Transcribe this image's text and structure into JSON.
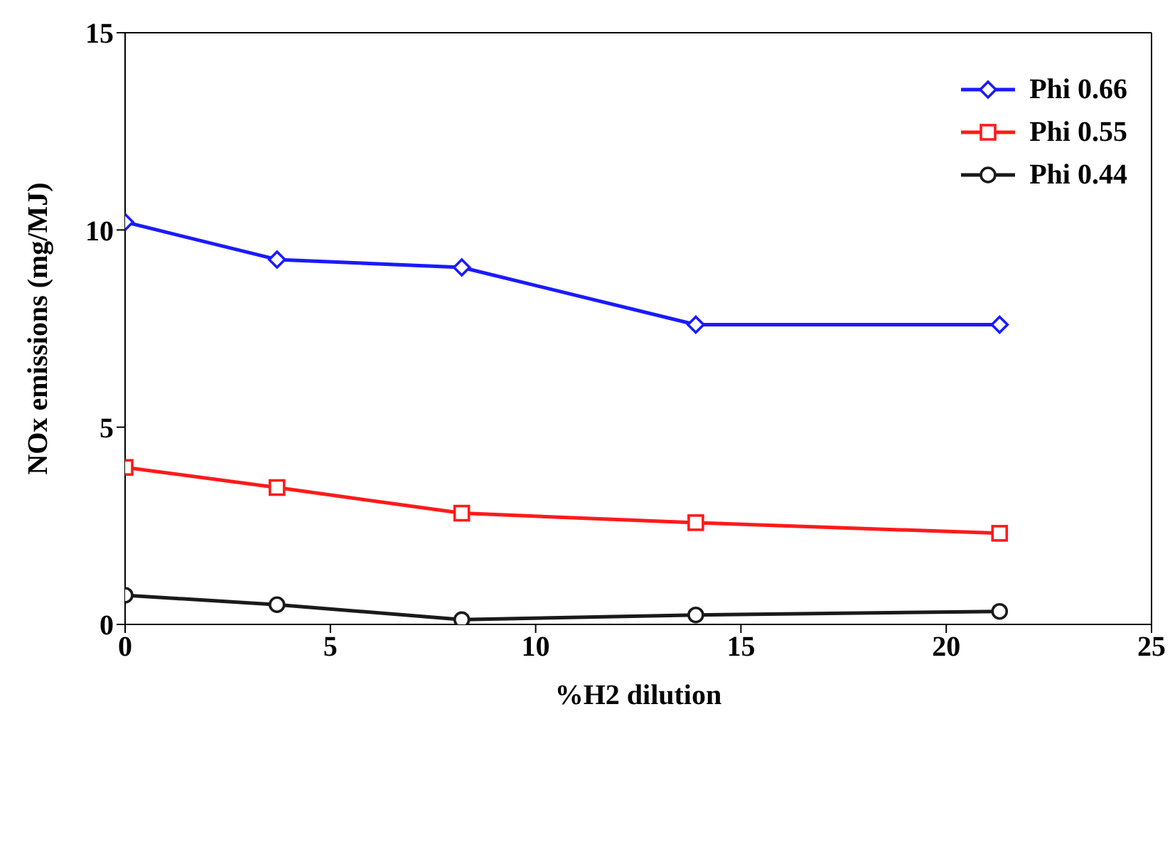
{
  "chart_data": {
    "type": "line",
    "xlabel": "%H2 dilution",
    "ylabel": "NOx emissions (mg/MJ)",
    "x": [
      0,
      3.7,
      8.2,
      13.9,
      21.3
    ],
    "series": [
      {
        "name": "Phi 0.66",
        "color": "#1a1aff",
        "marker": "diamond",
        "values": [
          10.2,
          9.25,
          9.05,
          7.6,
          7.6
        ]
      },
      {
        "name": "Phi 0.55",
        "color": "#ff1a1a",
        "marker": "square",
        "values": [
          3.98,
          3.47,
          2.82,
          2.58,
          2.31
        ]
      },
      {
        "name": "Phi 0.44",
        "color": "#1a1a1a",
        "marker": "circle",
        "values": [
          0.74,
          0.5,
          0.12,
          0.24,
          0.33
        ]
      }
    ],
    "xlim": [
      0,
      25
    ],
    "xticks": [
      0,
      5,
      10,
      15,
      20,
      25
    ],
    "ylim": [
      0,
      15
    ],
    "yticks": [
      0,
      5,
      10,
      15
    ],
    "grid": false,
    "legend": "top right",
    "line_style": "solid"
  }
}
